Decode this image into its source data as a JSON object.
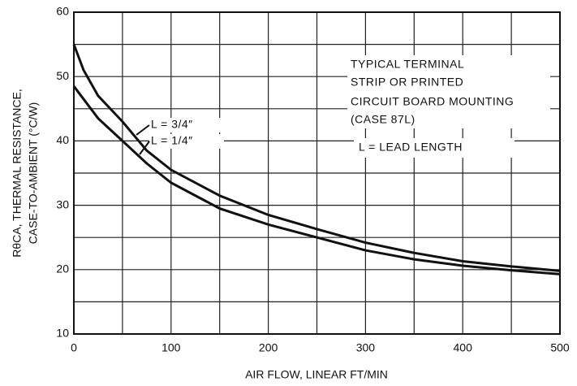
{
  "chart_data": {
    "type": "line",
    "xlabel": "AIR FLOW, LINEAR FT/MIN",
    "ylabel": [
      "RθCA, THERMAL RESISTANCE,",
      "CASE-TO-AMBIENT (°C/W)"
    ],
    "annotations": [
      "TYPICAL TERMINAL",
      "STRIP OR PRINTED",
      "CIRCUIT BOARD MOUNTING",
      "(CASE 87L)",
      "L = LEAD LENGTH"
    ],
    "x": [
      0,
      10,
      25,
      50,
      75,
      100,
      150,
      200,
      250,
      300,
      350,
      400,
      450,
      500
    ],
    "series": [
      {
        "name": "L = 3/4″",
        "color": "#111111",
        "values": [
          55,
          51,
          47,
          43,
          38.5,
          35.5,
          31.5,
          28.5,
          26.3,
          24.2,
          22.6,
          21.3,
          20.5,
          19.8
        ]
      },
      {
        "name": "L = 1/4″",
        "color": "#111111",
        "values": [
          48.5,
          46.5,
          43.5,
          40,
          36.5,
          33.5,
          29.5,
          27,
          25,
          23,
          21.6,
          20.6,
          19.9,
          19.3
        ]
      }
    ],
    "xlim": [
      0,
      500
    ],
    "ylim": [
      10,
      60
    ],
    "xticks": [
      0,
      100,
      200,
      300,
      400,
      500
    ],
    "yticks": [
      10,
      20,
      30,
      40,
      50,
      60
    ],
    "x_minor_grid": [
      50,
      150,
      250,
      350,
      450
    ],
    "y_minor_grid": [
      15,
      25,
      35,
      45,
      55
    ],
    "grid": true
  }
}
